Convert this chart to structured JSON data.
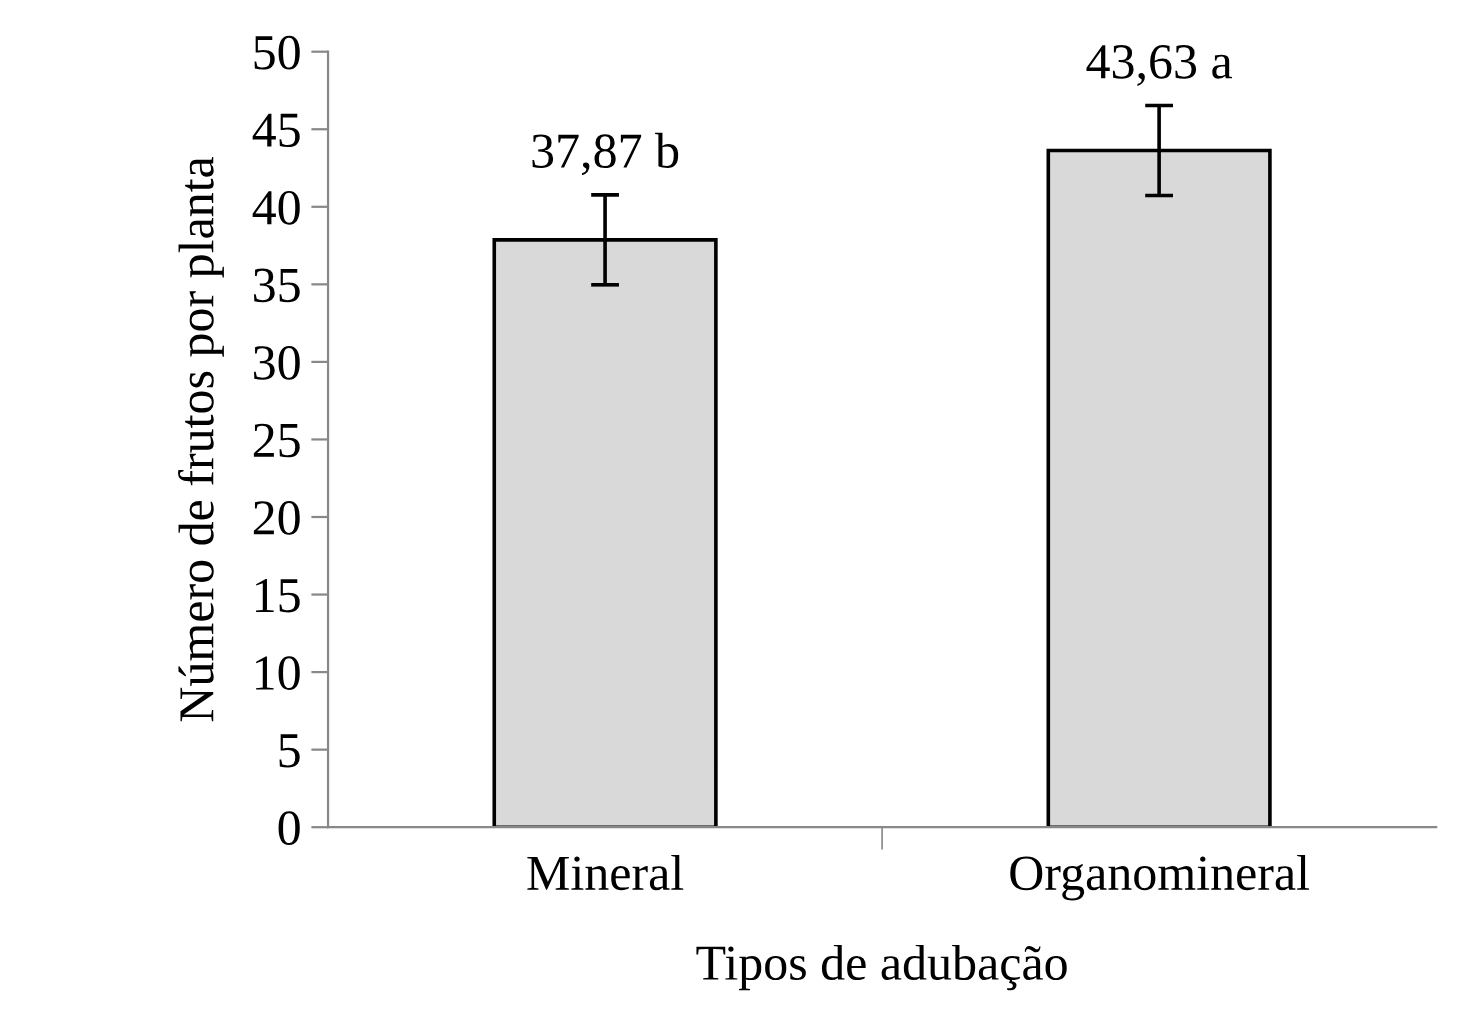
{
  "chart_data": {
    "type": "bar",
    "xlabel": "Tipos de adubação",
    "ylabel": "Número de frutos por planta",
    "categories": [
      "Mineral",
      "Organomineral"
    ],
    "values": [
      37.87,
      43.63
    ],
    "value_labels": [
      "37,87 b",
      "43,63 a"
    ],
    "errors": [
      2.9,
      2.9
    ],
    "color": "#d9d9d9",
    "ylim": [
      0,
      50
    ],
    "yticks": [
      0,
      5,
      10,
      15,
      20,
      25,
      30,
      35,
      40,
      45,
      50
    ],
    "grid": false,
    "legend": false
  }
}
